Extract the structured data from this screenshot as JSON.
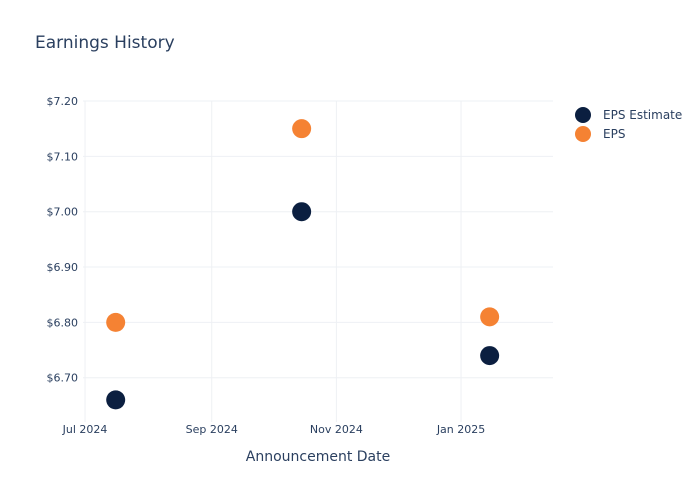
{
  "chart_data": {
    "type": "scatter",
    "title": "Earnings History",
    "xlabel": "Announcement Date",
    "ylabel": "",
    "x_ticks": [
      {
        "date": "2024-07-01",
        "label": "Jul 2024"
      },
      {
        "date": "2024-09-01",
        "label": "Sep 2024"
      },
      {
        "date": "2024-11-01",
        "label": "Nov 2024"
      },
      {
        "date": "2025-01-01",
        "label": "Jan 2025"
      }
    ],
    "y_ticks": [
      {
        "value": 6.7,
        "label": "$6.70"
      },
      {
        "value": 6.8,
        "label": "$6.80"
      },
      {
        "value": 6.9,
        "label": "$6.90"
      },
      {
        "value": 7.0,
        "label": "$7.00"
      },
      {
        "value": 7.1,
        "label": "$7.10"
      },
      {
        "value": 7.2,
        "label": "$7.20"
      }
    ],
    "xlim": [
      "2024-06-30",
      "2025-02-15"
    ],
    "ylim": [
      6.62,
      7.2
    ],
    "grid": true,
    "legend_position": "top-right",
    "series": [
      {
        "name": "EPS Estimate",
        "color": "#0b1f40",
        "points": [
          {
            "x": "2024-07-16",
            "y": 6.66
          },
          {
            "x": "2024-10-15",
            "y": 7.0
          },
          {
            "x": "2025-01-15",
            "y": 6.74
          }
        ]
      },
      {
        "name": "EPS",
        "color": "#f58233",
        "points": [
          {
            "x": "2024-07-16",
            "y": 6.8
          },
          {
            "x": "2024-10-15",
            "y": 7.15
          },
          {
            "x": "2025-01-15",
            "y": 6.81
          }
        ]
      }
    ]
  }
}
